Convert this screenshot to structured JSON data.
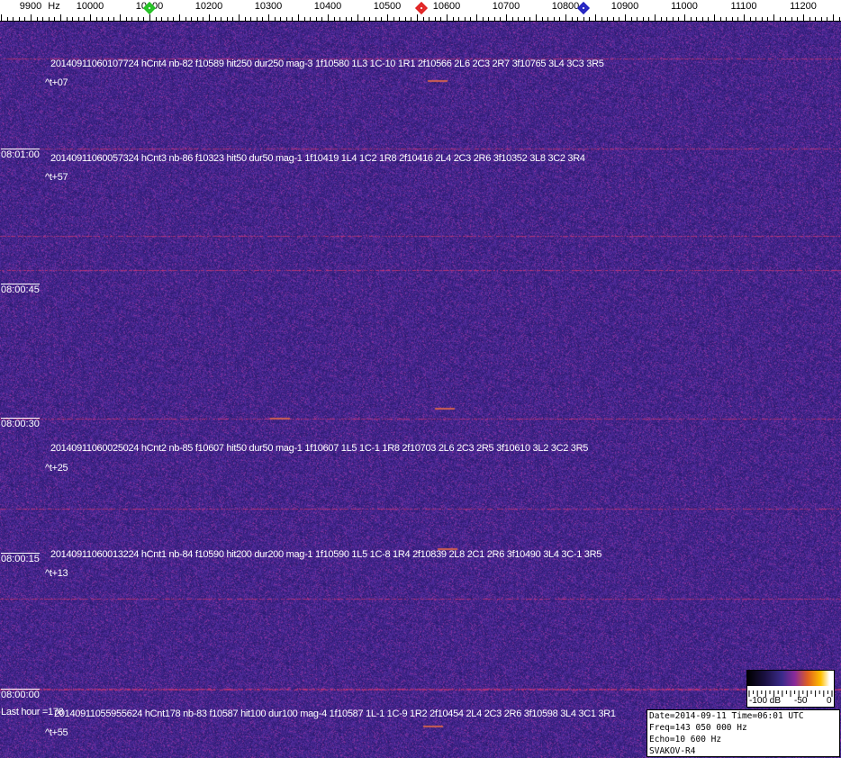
{
  "axis": {
    "unit": "Hz",
    "labels": [
      "9900",
      "10000",
      "10100",
      "10200",
      "10300",
      "10400",
      "10500",
      "10600",
      "10700",
      "10800",
      "10900",
      "11000",
      "11100",
      "11200"
    ],
    "markers": [
      {
        "name": "green-marker",
        "freq": 10100,
        "color": "#20c020"
      },
      {
        "name": "red-marker",
        "freq": 10558,
        "color": "#e02020"
      },
      {
        "name": "blue-marker",
        "freq": 10830,
        "color": "#2020c0"
      }
    ]
  },
  "time_labels": [
    "08:01:00",
    "08:00:45",
    "08:00:30",
    "08:00:15",
    "08:00:00"
  ],
  "detections": [
    {
      "line": "20140911060107724 hCnt4 nb-82 f10589 hit250 dur250 mag-3 1f10580 1L3 1C-10 1R1 2f10566 2L6 2C3 2R7 3f10765 3L4 3C3 3R5",
      "offset": "^t+07"
    },
    {
      "line": "20140911060057324 hCnt3 nb-86 f10323 hit50 dur50 mag-1 1f10419 1L4 1C2 1R8 2f10416 2L4 2C3 2R6 3f10352 3L8 3C2 3R4",
      "offset": "^t+57"
    },
    {
      "line": "20140911060025024 hCnt2 nb-85 f10607 hit50 dur50 mag-1 1f10607 1L5 1C-1 1R8 2f10703 2L6 2C3 2R5 3f10610 3L2 3C2 3R5",
      "offset": "^t+25"
    },
    {
      "line": "20140911060013224 hCnt1 nb-84 f10590 hit200 dur200 mag-1 1f10590 1L5 1C-8 1R4 2f10839 2L8 2C1 2R6 3f10490 3L4 3C-1 3R5",
      "offset": "^t+13"
    },
    {
      "line": "20140911055955624 hCnt178 nb-83 f10587 hit100 dur100 mag-4 1f10587 1L-1 1C-9 1R2 2f10454 2L4 2C3 2R6 3f10598 3L4 3C1 3R1",
      "offset": "^t+55"
    }
  ],
  "last_hour": "Last hour =178",
  "colorbar": {
    "labels": [
      "-100 dB",
      "-50",
      "0"
    ]
  },
  "info": {
    "date_time": "Date=2014-09-11 Time=06:01 UTC",
    "freq": "Freq=143 050 000 Hz",
    "echo": "Echo=10 600 Hz",
    "station": "SVAKOV-R4"
  },
  "colors": {
    "background": "#3a2a8a",
    "signal": "#c04060"
  }
}
